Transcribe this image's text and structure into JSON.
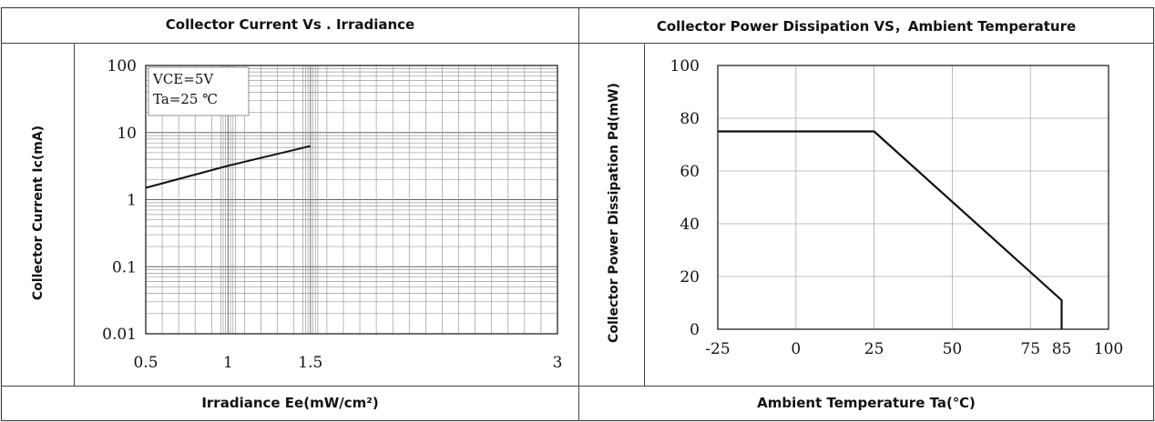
{
  "chart_data": [
    {
      "type": "line",
      "title": "Collector Current Vs . Irradiance",
      "xlabel": "Irradiance Ee(mW/cm²)",
      "ylabel": "Collector Current Ic(mA)",
      "x_ticks": [
        "0.5",
        "1",
        "1.5",
        "3"
      ],
      "y_ticks": [
        "0.01",
        "0.1",
        "1",
        "10",
        "100"
      ],
      "y_scale": "log",
      "ylim": [
        0.01,
        100
      ],
      "xlim": [
        0.5,
        3
      ],
      "grid": true,
      "annotation_lines": [
        "VCE=5V",
        "Ta=25 ℃"
      ],
      "series": [
        {
          "x": [
            0.5,
            1.0,
            1.5
          ],
          "y": [
            1.5,
            3.2,
            6.3
          ]
        }
      ]
    },
    {
      "type": "line",
      "title": "Collector Power Dissipation VS，Ambient Temperature",
      "xlabel": "Ambient Temperature Ta(℃)",
      "ylabel": "Collector Power Dissipation Pd(mW)",
      "x_ticks": [
        "-25",
        "0",
        "25",
        "50",
        "75",
        "85",
        "100"
      ],
      "y_ticks": [
        "0",
        "20",
        "40",
        "60",
        "80",
        "100"
      ],
      "xlim": [
        -25,
        100
      ],
      "ylim": [
        0,
        100
      ],
      "grid": true,
      "series": [
        {
          "x": [
            -25,
            25,
            85,
            85
          ],
          "y": [
            75,
            75,
            11,
            0
          ]
        }
      ]
    }
  ]
}
